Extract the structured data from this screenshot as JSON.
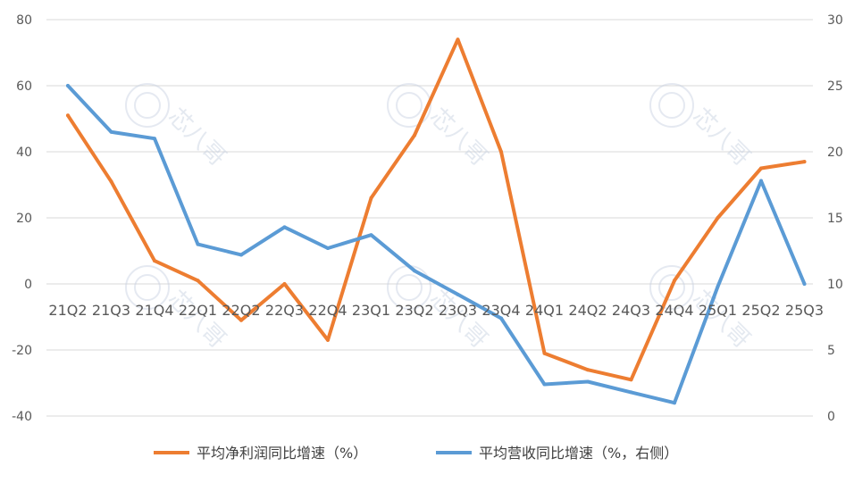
{
  "chart_data": {
    "type": "line",
    "categories": [
      "21Q2",
      "21Q3",
      "21Q4",
      "22Q1",
      "22Q2",
      "22Q3",
      "22Q4",
      "23Q1",
      "23Q2",
      "23Q3",
      "23Q4",
      "24Q1",
      "24Q2",
      "24Q3",
      "24Q4",
      "25Q1",
      "25Q2",
      "25Q3"
    ],
    "y_left": {
      "min": -40,
      "max": 80,
      "step": 20,
      "ticks": [
        "-40",
        "-20",
        "0",
        "20",
        "40",
        "60",
        "80"
      ]
    },
    "y_right": {
      "min": 0,
      "max": 30,
      "step": 5,
      "ticks": [
        "0",
        "5",
        "10",
        "15",
        "20",
        "25",
        "30"
      ]
    },
    "grid": true,
    "legend_position": "bottom",
    "series": [
      {
        "name": "平均净利润同比增速（%）",
        "axis": "left",
        "color": "#ed7d31",
        "values": [
          51,
          31,
          7,
          1,
          -11,
          0,
          -17,
          26,
          45,
          74,
          40,
          -21,
          -26,
          -29,
          1,
          20,
          35,
          37
        ]
      },
      {
        "name": "平均营收同比增速（%，右侧）",
        "axis": "right",
        "color": "#5b9bd5",
        "values": [
          25,
          21.5,
          21,
          13,
          12.2,
          14.3,
          12.7,
          13.7,
          11,
          9.2,
          7.4,
          2.4,
          2.6,
          1.8,
          1,
          9.8,
          17.8,
          10
        ]
      }
    ]
  },
  "watermark": {
    "text": "芯八哥"
  }
}
